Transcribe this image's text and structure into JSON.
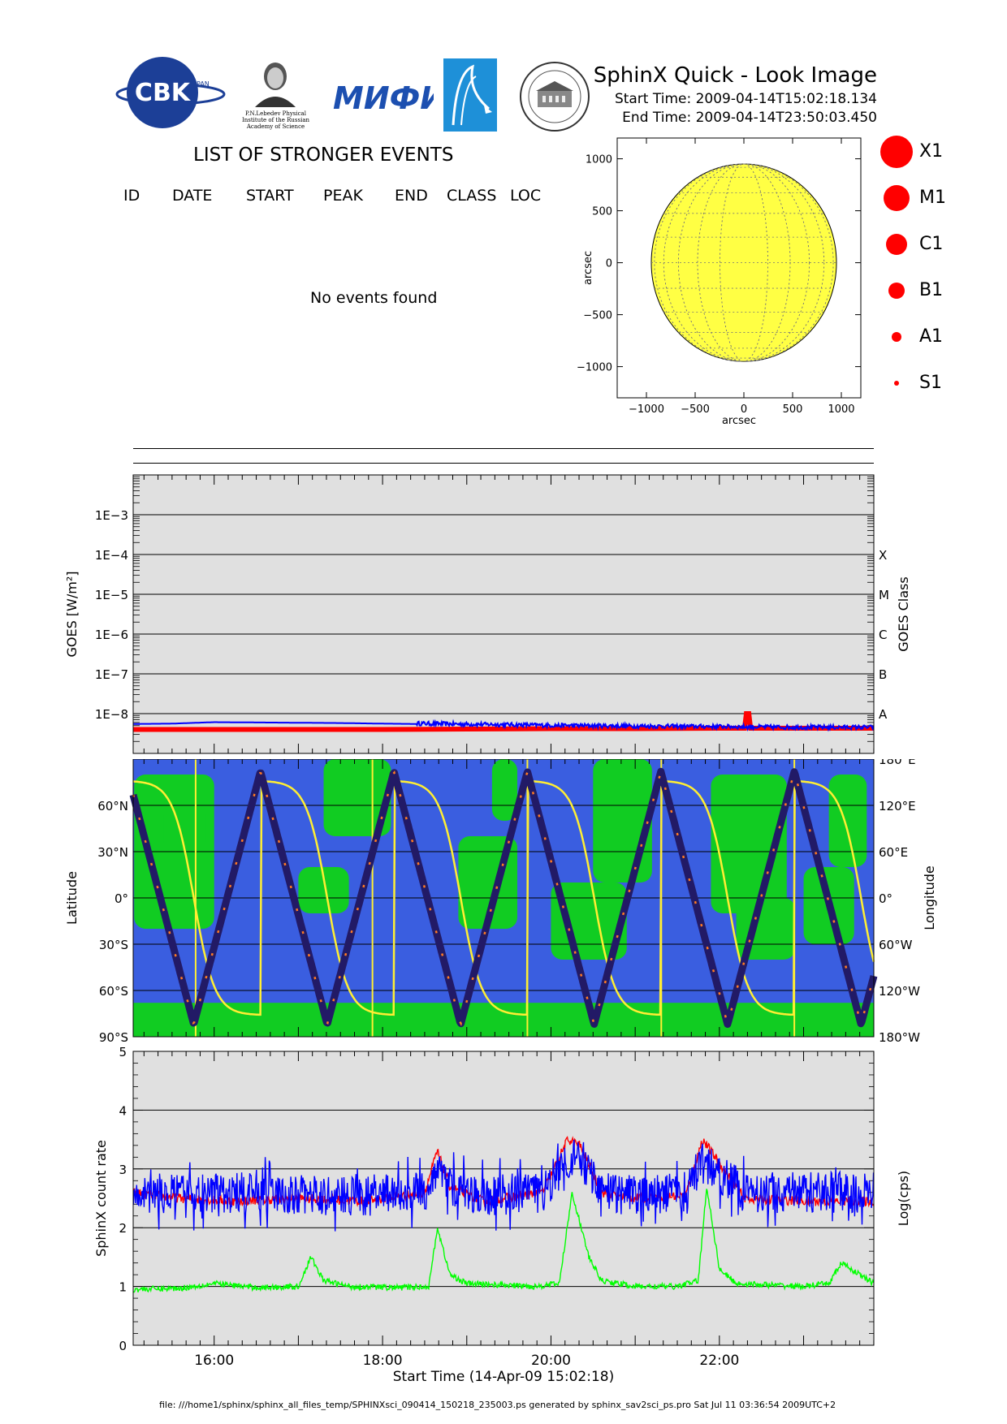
{
  "header": {
    "logo_cbk": "CBK",
    "logo_cbk_sub": "PAN",
    "logo_lebedev_caption": [
      "P.N.Lebedev Physical",
      "Institute of the Russian",
      "Academy of Science"
    ],
    "logo_miph": "МИФИ",
    "title": "SphinX Quick - Look Image",
    "start_time": "Start Time: 2009-04-14T15:02:18.134",
    "end_time": "End Time: 2009-04-14T23:50:03.450"
  },
  "events": {
    "title": "LIST OF STRONGER EVENTS",
    "columns": [
      "ID",
      "DATE",
      "START",
      "PEAK",
      "END",
      "CLASS",
      "LOC"
    ],
    "rows": [],
    "empty_message": "No events found"
  },
  "legend": {
    "items": [
      {
        "label": "X1",
        "radius": 20
      },
      {
        "label": "M1",
        "radius": 16
      },
      {
        "label": "C1",
        "radius": 13
      },
      {
        "label": "B1",
        "radius": 10
      },
      {
        "label": "A1",
        "radius": 6
      },
      {
        "label": "S1",
        "radius": 3
      }
    ],
    "color": "#ff0000"
  },
  "footer": {
    "text": "file: ///home1/sphinx/sphinx_all_files_temp/SPHINXsci_090414_150218_235003.ps generated by sphinx_sav2sci_ps.pro Sat Jul 11 03:36:54 2009UTC+2"
  },
  "chart_data": [
    {
      "type": "scatter",
      "name": "solar-disk",
      "xlabel": "arcsec",
      "ylabel": "arcsec",
      "xlim": [
        -1300,
        1200
      ],
      "ylim": [
        -1300,
        1200
      ],
      "x_ticks": [
        -1000,
        -500,
        0,
        500,
        1000
      ],
      "y_ticks": [
        -1000,
        -500,
        0,
        500,
        1000
      ],
      "solar_radius": 950,
      "disk_color": "#ffff44",
      "events": []
    },
    {
      "type": "line",
      "name": "goes-flux",
      "ylabel": "GOES [W/m²]",
      "ylabel_right": "GOES Class",
      "yscale": "log",
      "ylim": [
        1e-09,
        0.01
      ],
      "y_tick_labels": [
        "1E-8",
        "1E-7",
        "1E-6",
        "1E-5",
        "1E-4",
        "1E-3"
      ],
      "y_tick_values": [
        1e-08,
        1e-07,
        1e-06,
        1e-05,
        0.0001,
        0.001
      ],
      "class_labels": [
        "A",
        "B",
        "C",
        "M",
        "X"
      ],
      "class_values": [
        1e-08,
        1e-07,
        1e-06,
        1e-05,
        0.0001
      ],
      "xlim_hours": [
        15.0383,
        23.834
      ],
      "grid": true,
      "series": [
        {
          "color": "#0000ff",
          "x": [
            15.04,
            15.5,
            16.0,
            16.5,
            17.0,
            17.5,
            18.0,
            18.4,
            18.8,
            19.5,
            20.0,
            21.0,
            22.0,
            22.3,
            23.0,
            23.83
          ],
          "y": [
            5.5e-09,
            5.6e-09,
            6.1e-09,
            6e-09,
            5.9e-09,
            5.8e-09,
            5.6e-09,
            5.5e-09,
            5.3e-09,
            5.1e-09,
            4.9e-09,
            4.7e-09,
            4.6e-09,
            4.5e-09,
            4.4e-09,
            4.4e-09
          ]
        },
        {
          "color": "#ff0000",
          "x": [
            15.04,
            16.0,
            17.0,
            18.0,
            19.0,
            20.0,
            21.0,
            22.0,
            22.3,
            22.32,
            22.35,
            22.37,
            23.0,
            23.83
          ],
          "y": [
            4e-09,
            4e-09,
            4e-09,
            4e-09,
            4.1e-09,
            4.2e-09,
            4.2e-09,
            4.3e-09,
            4.3e-09,
            1e-08,
            1e-08,
            4.3e-09,
            4.3e-09,
            4.3e-09
          ]
        }
      ]
    },
    {
      "type": "line",
      "name": "orbit-map",
      "ylabel": "Latitude",
      "ylabel_right": "Longitude",
      "lat_tick_labels": [
        "90°S",
        "60°S",
        "30°S",
        "0°",
        "30°N",
        "60°N"
      ],
      "lat_tick_values": [
        -90,
        -60,
        -30,
        0,
        30,
        60
      ],
      "lon_tick_labels": [
        "180°W",
        "120°W",
        "60°W",
        "0°",
        "60°E",
        "120°E",
        "180°E"
      ],
      "lon_tick_values": [
        -180,
        -120,
        -60,
        0,
        60,
        120,
        180
      ],
      "ylim": [
        -90,
        90
      ],
      "xlim_hours": [
        15.0383,
        23.834
      ],
      "inclination": 82,
      "orbit_period_hours": 1.585,
      "latitude_peak_hours": [
        16.55,
        18.14,
        19.72,
        21.31,
        22.89
      ],
      "longitude_wrap_hours": [
        15.78,
        17.88,
        19.72,
        21.31,
        22.89
      ],
      "colors": {
        "ocean": "#3a5ee0",
        "land": "#11cc22",
        "track": "#221a66",
        "longitude": "#ffee33"
      }
    },
    {
      "type": "line",
      "name": "sphinx-count-rate",
      "ylabel": "SphinX count rate",
      "ylabel_right": "Log(cps)",
      "xlabel": "Start Time (14-Apr-09 15:02:18)",
      "ylim": [
        0,
        5
      ],
      "y_ticks": [
        0,
        1,
        2,
        3,
        4,
        5
      ],
      "x_tick_labels": [
        "16:00",
        "18:00",
        "20:00",
        "22:00"
      ],
      "x_tick_hours": [
        16,
        18,
        20,
        22
      ],
      "xlim_hours": [
        15.0383,
        23.834
      ],
      "grid": true,
      "series": [
        {
          "color": "#ff0000",
          "x": [
            15.04,
            15.6,
            16.2,
            17.0,
            17.8,
            18.5,
            18.65,
            18.8,
            19.2,
            19.9,
            20.2,
            20.35,
            20.6,
            21.0,
            21.6,
            21.8,
            21.95,
            22.3,
            23.0,
            23.83
          ],
          "y": [
            2.6,
            2.5,
            2.45,
            2.5,
            2.45,
            2.6,
            3.3,
            2.7,
            2.45,
            2.6,
            3.5,
            3.4,
            2.6,
            2.5,
            2.55,
            3.5,
            3.2,
            2.5,
            2.45,
            2.45
          ]
        },
        {
          "color": "#0000ff",
          "x": [
            15.04,
            15.6,
            16.2,
            17.0,
            17.8,
            18.5,
            18.65,
            18.8,
            19.2,
            19.9,
            20.2,
            20.35,
            20.6,
            21.0,
            21.6,
            21.8,
            21.95,
            22.3,
            23.0,
            23.83
          ],
          "y": [
            2.6,
            2.55,
            2.6,
            2.55,
            2.55,
            2.6,
            3.0,
            2.7,
            2.55,
            2.6,
            3.2,
            3.1,
            2.6,
            2.55,
            2.6,
            3.1,
            3.0,
            2.6,
            2.6,
            2.6
          ]
        },
        {
          "color": "#00ff00",
          "x": [
            15.04,
            15.6,
            16.0,
            16.5,
            17.0,
            17.15,
            17.3,
            17.6,
            18.2,
            18.55,
            18.65,
            18.8,
            19.0,
            19.8,
            20.1,
            20.25,
            20.45,
            20.6,
            21.0,
            21.5,
            21.75,
            21.85,
            22.0,
            22.2,
            23.0,
            23.3,
            23.45,
            23.83
          ],
          "y": [
            0.95,
            0.97,
            1.05,
            0.98,
            1.0,
            1.5,
            1.1,
            1.0,
            0.98,
            1.0,
            2.0,
            1.2,
            1.05,
            1.0,
            1.05,
            2.6,
            1.5,
            1.1,
            1.0,
            1.0,
            1.1,
            2.7,
            1.3,
            1.05,
            1.0,
            1.05,
            1.4,
            1.05
          ]
        }
      ]
    }
  ]
}
